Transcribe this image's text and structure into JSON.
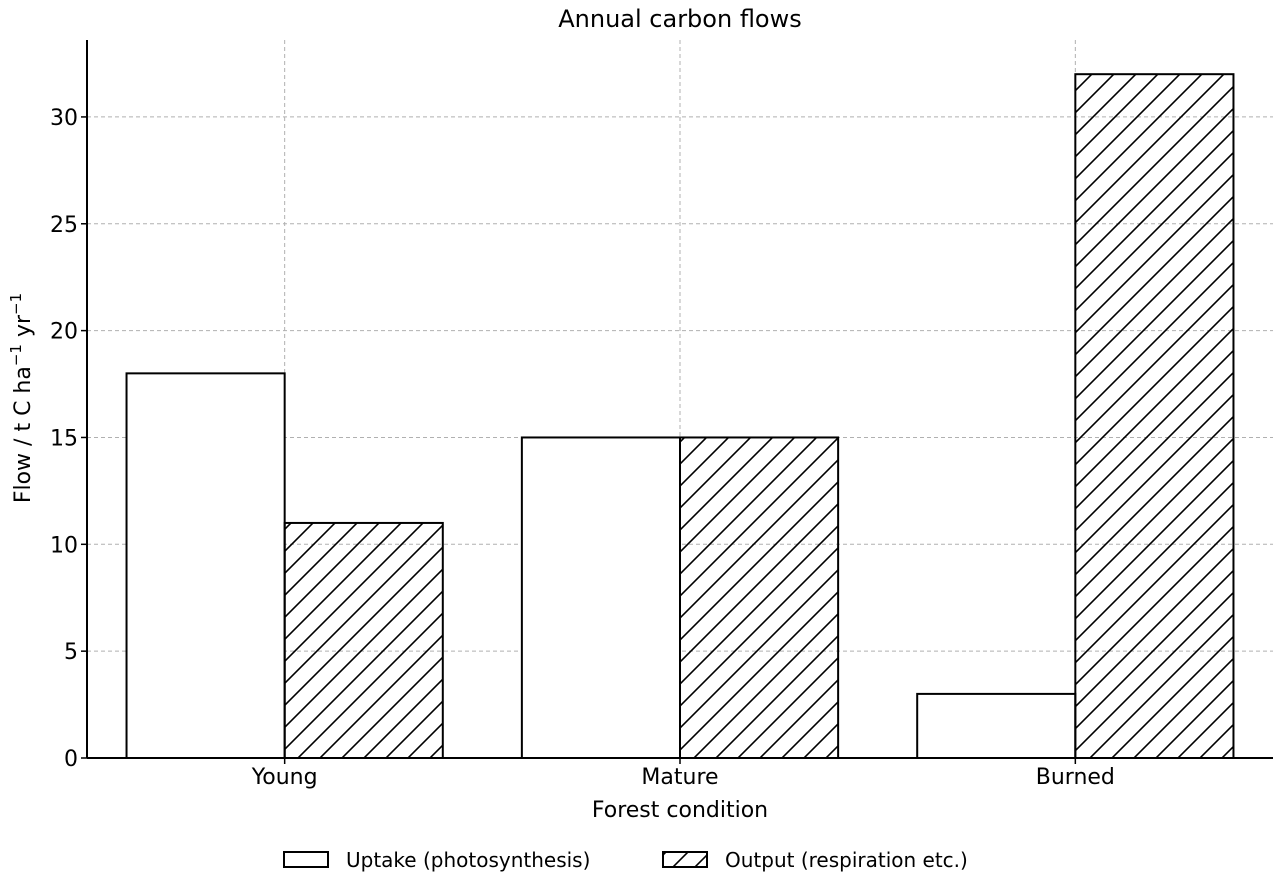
{
  "chart_data": {
    "type": "bar",
    "title": "Annual carbon flows",
    "xlabel": "Forest condition",
    "ylabel": "Flow / t C ha",
    "ylabel_parts": {
      "p1": "Flow / t C ha",
      "sup1": "−1",
      "p2": " yr",
      "sup2": "−1"
    },
    "categories": [
      "Young",
      "Mature",
      "Burned"
    ],
    "series": [
      {
        "name": "Uptake (photosynthesis)",
        "values": [
          18,
          15,
          3
        ],
        "fill": "none"
      },
      {
        "name": "Output (respiration etc.)",
        "values": [
          11,
          15,
          32
        ],
        "fill": "hatch"
      }
    ],
    "ylim": [
      0,
      33.6
    ],
    "yticks": [
      0,
      5,
      10,
      15,
      20,
      25,
      30
    ],
    "grid": true,
    "legend_position": "bottom-center",
    "colors": {
      "edge": "#000000",
      "grid": "#b0b0b0",
      "background": "#ffffff"
    }
  }
}
